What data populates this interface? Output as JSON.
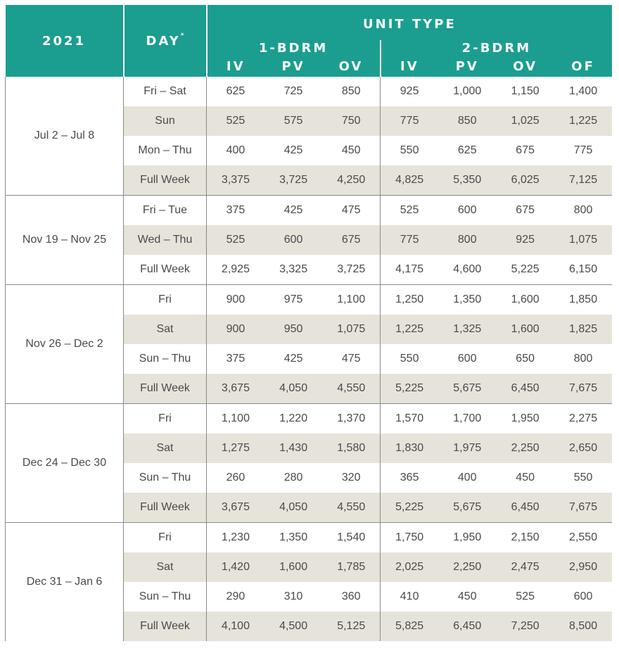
{
  "header": {
    "year": "2021",
    "day": "DAY",
    "day_mark": "*",
    "unit_type": "UNIT TYPE",
    "group_1bdrm": "1-BDRM",
    "group_2bdrm": "2-BDRM",
    "codes": [
      "IV",
      "PV",
      "OV",
      "IV",
      "PV",
      "OV",
      "OF"
    ]
  },
  "colors": {
    "header_bg": "#1b9e8f",
    "shade": "#e6e3da",
    "text": "#4a4a4a"
  },
  "groups": [
    {
      "range": "Jul 2 – Jul 8",
      "rows": [
        {
          "day": "Fri – Sat",
          "values": [
            "625",
            "725",
            "850",
            "925",
            "1,000",
            "1,150",
            "1,400"
          ]
        },
        {
          "day": "Sun",
          "values": [
            "525",
            "575",
            "750",
            "775",
            "850",
            "1,025",
            "1,225"
          ]
        },
        {
          "day": "Mon – Thu",
          "values": [
            "400",
            "425",
            "450",
            "550",
            "625",
            "675",
            "775"
          ]
        },
        {
          "day": "Full Week",
          "values": [
            "3,375",
            "3,725",
            "4,250",
            "4,825",
            "5,350",
            "6,025",
            "7,125"
          ]
        }
      ]
    },
    {
      "range": "Nov 19 – Nov 25",
      "rows": [
        {
          "day": "Fri – Tue",
          "values": [
            "375",
            "425",
            "475",
            "525",
            "600",
            "675",
            "800"
          ]
        },
        {
          "day": "Wed – Thu",
          "values": [
            "525",
            "600",
            "675",
            "775",
            "800",
            "925",
            "1,075"
          ]
        },
        {
          "day": "Full Week",
          "values": [
            "2,925",
            "3,325",
            "3,725",
            "4,175",
            "4,600",
            "5,225",
            "6,150"
          ]
        }
      ]
    },
    {
      "range": "Nov 26 – Dec 2",
      "rows": [
        {
          "day": "Fri",
          "values": [
            "900",
            "975",
            "1,100",
            "1,250",
            "1,350",
            "1,600",
            "1,850"
          ]
        },
        {
          "day": "Sat",
          "values": [
            "900",
            "950",
            "1,075",
            "1,225",
            "1,325",
            "1,600",
            "1,825"
          ]
        },
        {
          "day": "Sun – Thu",
          "values": [
            "375",
            "425",
            "475",
            "550",
            "600",
            "650",
            "800"
          ]
        },
        {
          "day": "Full Week",
          "values": [
            "3,675",
            "4,050",
            "4,550",
            "5,225",
            "5,675",
            "6,450",
            "7,675"
          ]
        }
      ]
    },
    {
      "range": "Dec 24 – Dec 30",
      "rows": [
        {
          "day": "Fri",
          "values": [
            "1,100",
            "1,220",
            "1,370",
            "1,570",
            "1,700",
            "1,950",
            "2,275"
          ]
        },
        {
          "day": "Sat",
          "values": [
            "1,275",
            "1,430",
            "1,580",
            "1,830",
            "1,975",
            "2,250",
            "2,650"
          ]
        },
        {
          "day": "Sun – Thu",
          "values": [
            "260",
            "280",
            "320",
            "365",
            "400",
            "450",
            "550"
          ]
        },
        {
          "day": "Full Week",
          "values": [
            "3,675",
            "4,050",
            "4,550",
            "5,225",
            "5,675",
            "6,450",
            "7,675"
          ]
        }
      ]
    },
    {
      "range": "Dec 31 – Jan 6",
      "rows": [
        {
          "day": "Fri",
          "values": [
            "1,230",
            "1,350",
            "1,540",
            "1,750",
            "1,950",
            "2,150",
            "2,550"
          ]
        },
        {
          "day": "Sat",
          "values": [
            "1,420",
            "1,600",
            "1,785",
            "2,025",
            "2,250",
            "2,475",
            "2,950"
          ]
        },
        {
          "day": "Sun – Thu",
          "values": [
            "290",
            "310",
            "360",
            "410",
            "450",
            "525",
            "600"
          ]
        },
        {
          "day": "Full Week",
          "values": [
            "4,100",
            "4,500",
            "5,125",
            "5,825",
            "6,450",
            "7,250",
            "8,500"
          ]
        }
      ]
    }
  ]
}
